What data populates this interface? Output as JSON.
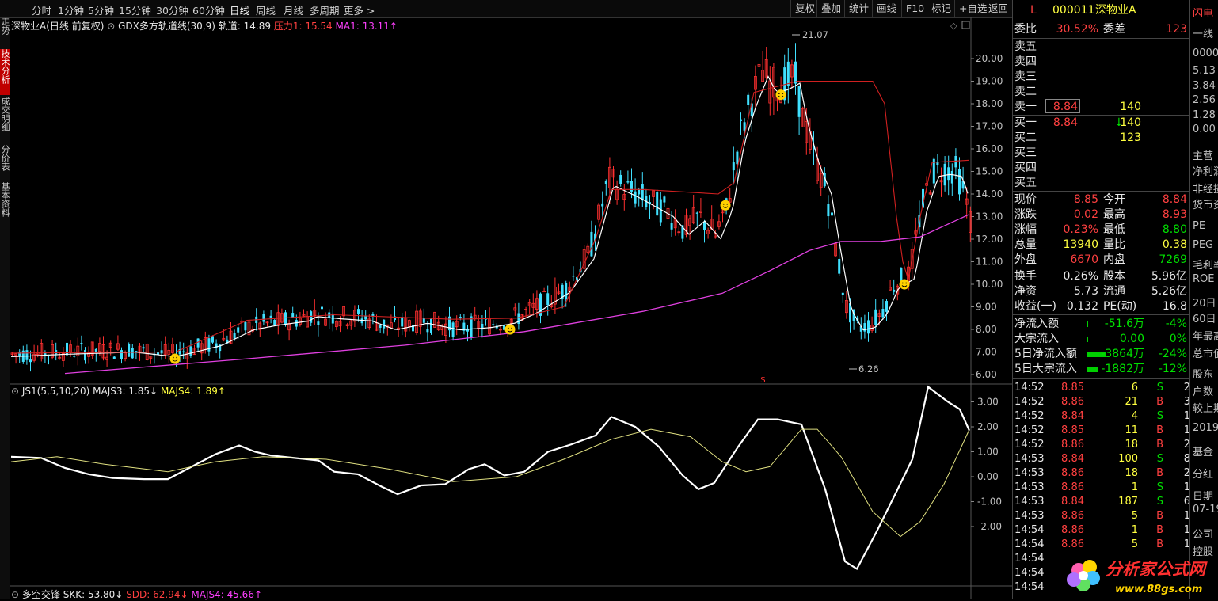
{
  "toolbar": {
    "periods": [
      "分时",
      "1分钟",
      "5分钟",
      "15分钟",
      "30分钟",
      "60分钟",
      "日线",
      "周线",
      "月线",
      "多周期",
      "更多 >"
    ],
    "active_period": "日线",
    "right_buttons": [
      "复权",
      "叠加",
      "统计",
      "画线",
      "F10",
      "标记",
      "+自选",
      "返回"
    ]
  },
  "left_tabs": [
    "分时走势",
    "技术分析",
    "成交明细",
    "分价表",
    "基本资料"
  ],
  "chart_info": {
    "stock_label": "深物业A(日线 前复权)",
    "indicator": "GDX多方轨道线(30,9)",
    "track": "轨道: 14.89",
    "pressure": "压力1: 15.54",
    "ma1": "MA1: 13.11↑"
  },
  "price_axis": [
    "20.00",
    "19.00",
    "18.00",
    "17.00",
    "16.00",
    "15.00",
    "14.00",
    "13.00",
    "12.00",
    "11.00",
    "10.00",
    "9.00",
    "8.00",
    "7.00",
    "6.00"
  ],
  "price_annotations": {
    "high": "21.07",
    "low": "6.26"
  },
  "ind1_info": {
    "name": "JS1(5,5,10,20)",
    "majs3": "MAJS3: 1.85↓",
    "majs4": "MAJS4: 1.89↑"
  },
  "ind1_axis": [
    "3.00",
    "2.00",
    "1.00",
    "0.00",
    "-1.00",
    "-2.00"
  ],
  "ind2_info": {
    "name": "多空交锋",
    "skk": "SKK: 53.80↓",
    "sdd": "SDD: 62.94↓",
    "majs4": "MAJS4: 45.66↑"
  },
  "colors": {
    "up": "#ff3030",
    "down": "#40e0ff",
    "white_line": "#ffffff",
    "magenta_line": "#e040e0",
    "yellow_line": "#e0e080"
  },
  "right_panel": {
    "flag": "L",
    "code": "000011",
    "name": "深物业A",
    "weibi_label": "委比",
    "weibi": "30.52%",
    "weicha_label": "委差",
    "weicha": "123",
    "asks": [
      {
        "label": "卖五",
        "price": "",
        "vol": ""
      },
      {
        "label": "卖四",
        "price": "",
        "vol": ""
      },
      {
        "label": "卖三",
        "price": "",
        "vol": ""
      },
      {
        "label": "卖二",
        "price": "",
        "vol": ""
      },
      {
        "label": "卖一",
        "price": "8.84",
        "vol": "140"
      }
    ],
    "bids": [
      {
        "label": "买一",
        "price": "8.84",
        "arrow": "↓",
        "vol": "140"
      },
      {
        "label": "买二",
        "price": "",
        "arrow": "",
        "vol": "123"
      },
      {
        "label": "买三",
        "price": "",
        "arrow": "",
        "vol": ""
      },
      {
        "label": "买四",
        "price": "",
        "arrow": "",
        "vol": ""
      },
      {
        "label": "买五",
        "price": "",
        "arrow": "",
        "vol": ""
      }
    ],
    "quote": [
      {
        "l1": "现价",
        "v1": "8.85",
        "c1": "red",
        "l2": "今开",
        "v2": "8.84",
        "c2": "red"
      },
      {
        "l1": "涨跌",
        "v1": "0.02",
        "c1": "red",
        "l2": "最高",
        "v2": "8.93",
        "c2": "red"
      },
      {
        "l1": "涨幅",
        "v1": "0.23%",
        "c1": "red",
        "l2": "最低",
        "v2": "8.80",
        "c2": "green"
      },
      {
        "l1": "总量",
        "v1": "13940",
        "c1": "yellow",
        "l2": "量比",
        "v2": "0.38",
        "c2": "yellow"
      },
      {
        "l1": "外盘",
        "v1": "6670",
        "c1": "red",
        "l2": "内盘",
        "v2": "7269",
        "c2": "green"
      }
    ],
    "stats": [
      {
        "l1": "换手",
        "v1": "0.26%",
        "l2": "股本",
        "v2": "5.96亿"
      },
      {
        "l1": "净资",
        "v1": "5.73",
        "l2": "流通",
        "v2": "5.26亿"
      },
      {
        "l1": "收益(一)",
        "v1": "0.132",
        "l2": "PE(动)",
        "v2": "16.8"
      }
    ],
    "flows": [
      {
        "label": "净流入额",
        "v1": "-51.6万",
        "v2": "-4%",
        "bar": 0.02
      },
      {
        "label": "大宗流入",
        "v1": "0.00",
        "v2": "0%",
        "bar": 0
      },
      {
        "label": "5日净流入额",
        "v1": "-3864万",
        "v2": "-24%",
        "bar": 0.9
      },
      {
        "label": "5日大宗流入",
        "v1": "-1882万",
        "v2": "-12%",
        "bar": 0.55
      }
    ],
    "ticks": [
      {
        "t": "14:52",
        "p": "8.85",
        "v": "6",
        "s": "S",
        "n": "2"
      },
      {
        "t": "14:52",
        "p": "8.86",
        "v": "21",
        "s": "B",
        "n": "3"
      },
      {
        "t": "14:52",
        "p": "8.84",
        "v": "4",
        "s": "S",
        "n": "1"
      },
      {
        "t": "14:52",
        "p": "8.85",
        "v": "11",
        "s": "B",
        "n": "1"
      },
      {
        "t": "14:52",
        "p": "8.86",
        "v": "18",
        "s": "B",
        "n": "2"
      },
      {
        "t": "14:53",
        "p": "8.84",
        "v": "100",
        "s": "S",
        "n": "8"
      },
      {
        "t": "14:53",
        "p": "8.86",
        "v": "18",
        "s": "B",
        "n": "2"
      },
      {
        "t": "14:53",
        "p": "8.86",
        "v": "1",
        "s": "S",
        "n": "1"
      },
      {
        "t": "14:53",
        "p": "8.84",
        "v": "187",
        "s": "S",
        "n": "6"
      },
      {
        "t": "14:53",
        "p": "8.86",
        "v": "5",
        "s": "B",
        "n": "1"
      },
      {
        "t": "14:54",
        "p": "8.86",
        "v": "1",
        "s": "B",
        "n": "1"
      },
      {
        "t": "14:54",
        "p": "8.86",
        "v": "5",
        "s": "B",
        "n": "1"
      },
      {
        "t": "14:54",
        "p": "",
        "v": "",
        "s": "",
        "n": ""
      },
      {
        "t": "14:54",
        "p": "",
        "v": "",
        "s": "",
        "n": ""
      },
      {
        "t": "14:54",
        "p": "",
        "v": "",
        "s": "",
        "n": ""
      }
    ]
  },
  "far_right": [
    "闪电",
    "一线",
    "0000",
    "5.13",
    "3.84",
    "2.56",
    "1.28",
    "0.00",
    "主营",
    "净利润",
    "非经损",
    "货币资",
    "PE",
    "PEG",
    "毛利率",
    "ROE",
    "20日",
    "60日",
    "年最高",
    "总市值",
    "股东",
    "户数",
    "较上期",
    "2019",
    "基金",
    "分红",
    "日期",
    "07-19",
    "公司",
    "控股"
  ],
  "watermark": {
    "title": "分析家公式网",
    "url": "www.88gs.com"
  }
}
